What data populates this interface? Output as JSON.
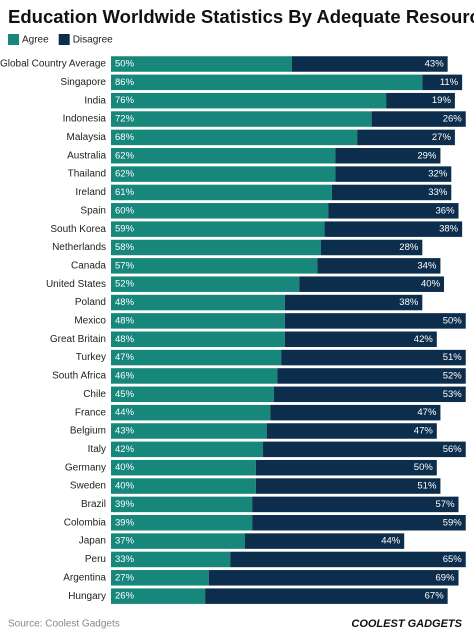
{
  "chart_data": {
    "type": "stacked-bar",
    "orientation": "horizontal",
    "title": "Education Worldwide Statistics By Adequate Resources",
    "categories": [
      "Global Country Average",
      "Singapore",
      "India",
      "Indonesia",
      "Malaysia",
      "Australia",
      "Thailand",
      "Ireland",
      "Spain",
      "South Korea",
      "Netherlands",
      "Canada",
      "United States",
      "Poland",
      "Mexico",
      "Great Britain",
      "Turkey",
      "South Africa",
      "Chile",
      "France",
      "Belgium",
      "Italy",
      "Germany",
      "Sweden",
      "Brazil",
      "Colombia",
      "Japan",
      "Peru",
      "Argentina",
      "Hungary"
    ],
    "series": [
      {
        "name": "Agree",
        "color": "#16877a",
        "values": [
          50,
          86,
          76,
          72,
          68,
          62,
          62,
          61,
          60,
          59,
          58,
          57,
          52,
          48,
          48,
          48,
          47,
          46,
          45,
          44,
          43,
          42,
          40,
          40,
          39,
          39,
          37,
          33,
          27,
          26
        ],
        "value_labels": [
          "50%",
          "86%",
          "76%",
          "72%",
          "68%",
          "62%",
          "62%",
          "61%",
          "60%",
          "59%",
          "58%",
          "57%",
          "52%",
          "48%",
          "48%",
          "48%",
          "47%",
          "46%",
          "45%",
          "44%",
          "43%",
          "42%",
          "40%",
          "40%",
          "39%",
          "39%",
          "37%",
          "33%",
          "27%",
          "26%"
        ]
      },
      {
        "name": "Disagree",
        "color": "#0c2d4c",
        "values": [
          43,
          11,
          19,
          26,
          27,
          29,
          32,
          33,
          36,
          38,
          28,
          34,
          40,
          38,
          50,
          42,
          51,
          52,
          53,
          47,
          47,
          56,
          50,
          51,
          57,
          59,
          44,
          65,
          69,
          67
        ],
        "value_labels": [
          "43%",
          "11%",
          "19%",
          "26%",
          "27%",
          "29%",
          "32%",
          "33%",
          "36%",
          "38%",
          "28%",
          "34%",
          "40%",
          "38%",
          "50%",
          "42%",
          "51%",
          "52%",
          "53%",
          "47%",
          "47%",
          "56%",
          "50%",
          "51%",
          "57%",
          "59%",
          "44%",
          "65%",
          "69%",
          "67%"
        ]
      }
    ],
    "source": "Source: Coolest Gadgets",
    "logo": "COOLEST GADGETS"
  }
}
